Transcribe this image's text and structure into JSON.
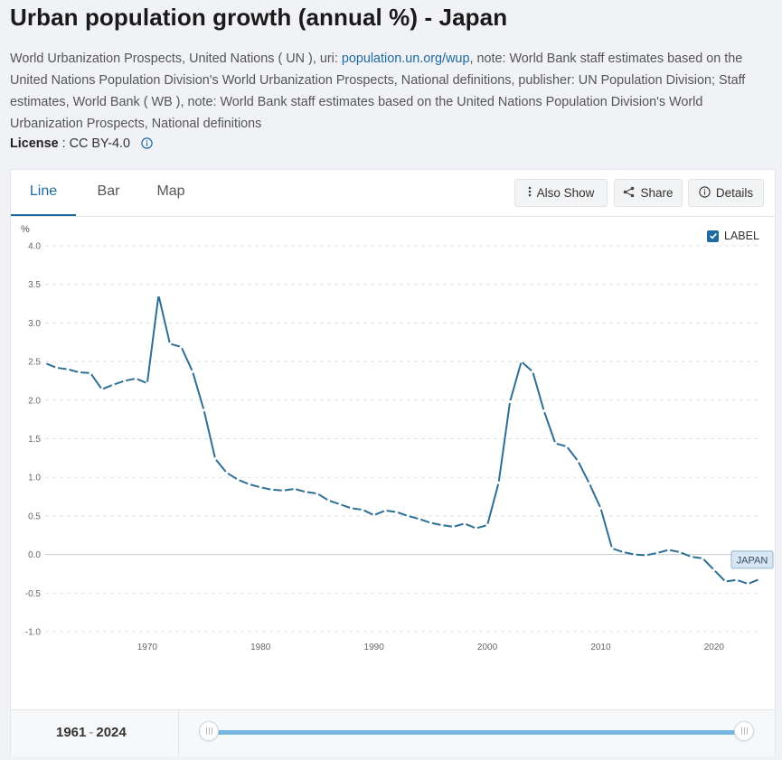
{
  "page": {
    "title": "Urban population growth (annual %) - Japan",
    "source_prefix": "World Urbanization Prospects, United Nations ( UN ), uri: ",
    "source_link": "population.un.org/wup",
    "source_suffix": ", note: World Bank staff estimates based on the United Nations Population Division's World Urbanization Prospects, National definitions, publisher: UN Population Division; Staff estimates, World Bank ( WB ), note: World Bank staff estimates based on the United Nations Population Division's World Urbanization Prospects, National definitions",
    "license_label": "License",
    "license_value": "CC BY-4.0"
  },
  "tabs": [
    {
      "label": "Line"
    },
    {
      "label": "Bar"
    },
    {
      "label": "Map"
    }
  ],
  "toolbar": {
    "also_show": "Also Show",
    "share": "Share",
    "details": "Details"
  },
  "label_toggle": {
    "text": "LABEL",
    "checked": true
  },
  "range": {
    "start": "1961",
    "sep": "-",
    "end": "2024"
  },
  "colors": {
    "line": "#2e6f96",
    "accent": "#1d6ba1",
    "label_bg": "#d7e6f2"
  },
  "icons": [
    "info-icon",
    "dots-vertical-icon",
    "share-icon",
    "info-circle-icon",
    "checkmark-icon",
    "slider-grip-icon"
  ],
  "chart_data": {
    "type": "line",
    "title": "Urban population growth (annual %) - Japan",
    "xlabel": "",
    "ylabel": "%",
    "xlim": [
      1961,
      2024
    ],
    "ylim": [
      -1.0,
      4.0
    ],
    "x_ticks": [
      1970,
      1980,
      1990,
      2000,
      2010,
      2020
    ],
    "y_ticks": [
      -1.0,
      -0.5,
      0.0,
      0.5,
      1.0,
      1.5,
      2.0,
      2.5,
      3.0,
      3.5,
      4.0
    ],
    "series": [
      {
        "name": "Japan",
        "end_label": "JAPAN",
        "x": [
          1961,
          1962,
          1963,
          1964,
          1965,
          1966,
          1967,
          1968,
          1969,
          1970,
          1971,
          1972,
          1973,
          1974,
          1975,
          1976,
          1977,
          1978,
          1979,
          1980,
          1981,
          1982,
          1983,
          1984,
          1985,
          1986,
          1987,
          1988,
          1989,
          1990,
          1991,
          1992,
          1993,
          1994,
          1995,
          1996,
          1997,
          1998,
          1999,
          2000,
          2001,
          2002,
          2003,
          2004,
          2005,
          2006,
          2007,
          2008,
          2009,
          2010,
          2011,
          2012,
          2013,
          2014,
          2015,
          2016,
          2017,
          2018,
          2019,
          2020,
          2021,
          2022,
          2023,
          2024
        ],
        "values": [
          2.48,
          2.42,
          2.4,
          2.36,
          2.35,
          2.14,
          2.2,
          2.25,
          2.28,
          2.22,
          3.36,
          2.73,
          2.69,
          2.37,
          1.87,
          1.24,
          1.06,
          0.97,
          0.91,
          0.87,
          0.84,
          0.83,
          0.85,
          0.81,
          0.79,
          0.7,
          0.65,
          0.6,
          0.58,
          0.51,
          0.57,
          0.55,
          0.5,
          0.46,
          0.41,
          0.38,
          0.36,
          0.4,
          0.34,
          0.38,
          0.93,
          1.98,
          2.5,
          2.37,
          1.86,
          1.44,
          1.4,
          1.21,
          0.92,
          0.6,
          0.08,
          0.03,
          0.0,
          -0.01,
          0.02,
          0.06,
          0.03,
          -0.03,
          -0.05,
          -0.2,
          -0.35,
          -0.33,
          -0.38,
          -0.32
        ]
      }
    ]
  }
}
